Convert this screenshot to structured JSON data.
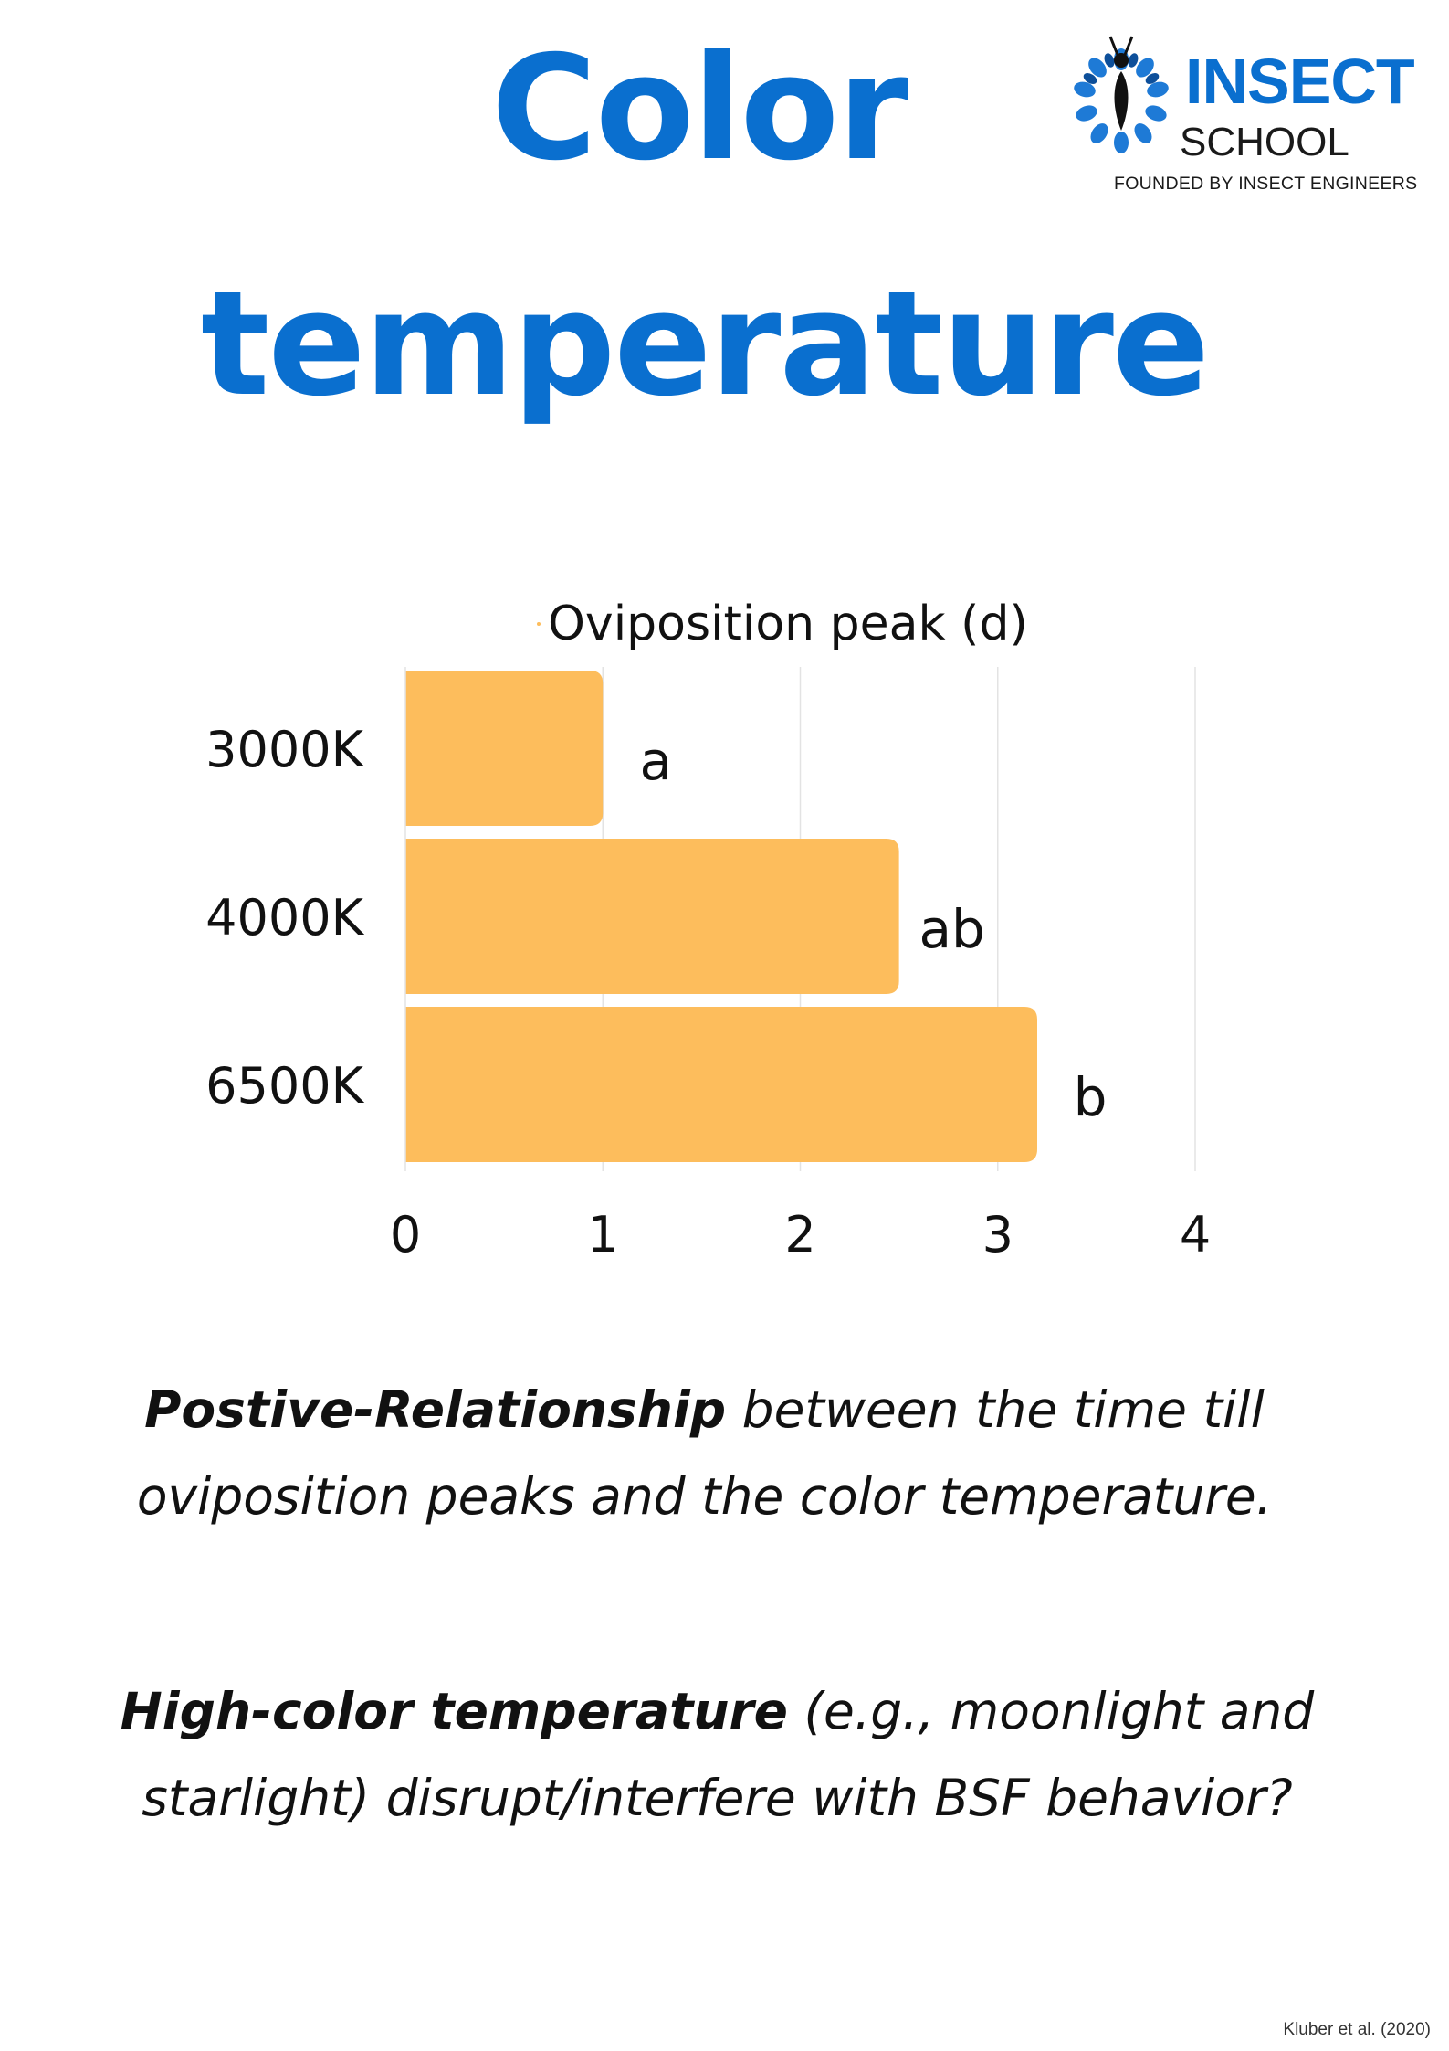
{
  "title": {
    "line1": "Color",
    "line2": "temperature"
  },
  "logo": {
    "name": "INSECT",
    "school": "SCHOOL",
    "tagline": "FOUNDED BY INSECT ENGINEERS",
    "icon": "fly-icon"
  },
  "chart_data": {
    "type": "bar",
    "orientation": "horizontal",
    "title": "",
    "xlabel": "",
    "ylabel": "",
    "categories": [
      "3000K",
      "4000K",
      "6500K"
    ],
    "series": [
      {
        "name": "Oviposition peak (d)",
        "values": [
          1.0,
          2.5,
          3.2
        ],
        "color": "#fdbd5c"
      }
    ],
    "data_labels": [
      "a",
      "ab",
      "b"
    ],
    "xlim": [
      0,
      4
    ],
    "xticks": [
      "0",
      "1",
      "2",
      "3",
      "4"
    ],
    "grid": "vertical",
    "legend_position": "top"
  },
  "notes": {
    "note1": {
      "bold": "Postive-Relationship",
      "rest_line1": " between the time till",
      "line2": "oviposition peaks and the color temperature."
    },
    "note2": {
      "bold": "High-color temperature",
      "rest_line1": " (e.g., moonlight and",
      "line2": "starlight) disrupt/interfere with BSF behavior?"
    }
  },
  "citation": "Kluber et al. (2020)",
  "colors": {
    "title": "#0a6fcf",
    "bar": "#fdbd5c",
    "grid": "#e3e3e3",
    "text": "#111111"
  }
}
